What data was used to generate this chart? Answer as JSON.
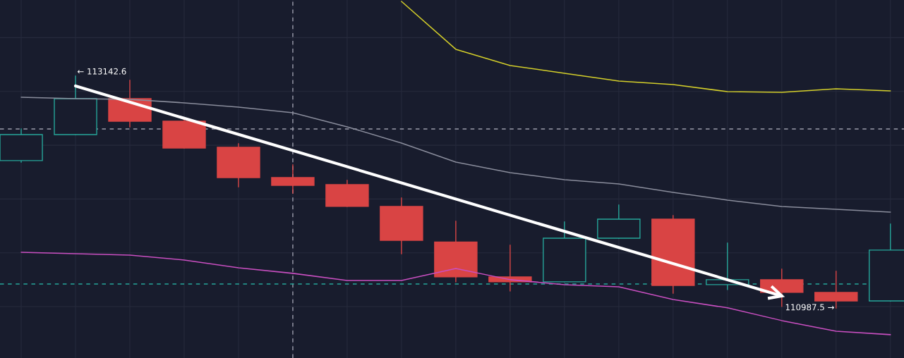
{
  "chart_data": {
    "type": "candlestick",
    "grid": true,
    "categories": [
      null,
      null,
      null,
      null,
      null,
      null,
      null,
      null,
      null,
      null,
      null,
      null,
      null,
      null,
      null,
      null,
      null
    ],
    "ylim": [
      110522,
      113850
    ],
    "ohlc": [
      [
        112357,
        112651,
        112343,
        112599
      ],
      [
        112599,
        113142.6,
        112599,
        112933
      ],
      [
        112933,
        113103,
        112671,
        112723
      ],
      [
        112723,
        112737,
        112474,
        112474
      ],
      [
        112481,
        112514,
        112114,
        112199
      ],
      [
        112199,
        112317,
        112055,
        112127
      ],
      [
        112134,
        112173,
        111931,
        111931
      ],
      [
        111931,
        112009,
        111492,
        111616
      ],
      [
        111600,
        111793,
        111230,
        111276
      ],
      [
        111276,
        111571,
        111145,
        111230
      ],
      [
        111230,
        111787,
        111230,
        111636
      ],
      [
        111636,
        111944,
        111636,
        111813
      ],
      [
        111813,
        111846,
        111125,
        111197
      ],
      [
        111204,
        111590,
        111158,
        111250
      ],
      [
        111250,
        111348,
        111001,
        111132
      ],
      [
        111132,
        111328,
        110987.5,
        111053
      ],
      [
        111053,
        111767,
        111053,
        111525
      ]
    ],
    "colors": [
      "#26a69a",
      "#26a69a",
      "#d94444",
      "#d94444",
      "#d94444",
      "#d94444",
      "#d94444",
      "#d94444",
      "#d94444",
      "#d94444",
      "#26a69a",
      "#26a69a",
      "#d94444",
      "#26a69a",
      "#d94444",
      "#d94444",
      "#26a69a"
    ],
    "series": [
      {
        "type": "line",
        "color": "#d4cf2a",
        "values": [
          null,
          null,
          null,
          null,
          null,
          null,
          null,
          113837,
          113392,
          113241,
          113169,
          113097,
          113064,
          112998,
          112992,
          113025,
          113005
        ]
      },
      {
        "type": "line",
        "color": "#8a8d9c",
        "values": [
          112946,
          112933,
          112926,
          112894,
          112854,
          112802,
          112671,
          112520,
          112343,
          112245,
          112180,
          112140,
          112062,
          111990,
          111931,
          111905,
          111878
        ]
      },
      {
        "type": "line",
        "color": "#c94fc1",
        "values": [
          111505,
          111492,
          111479,
          111433,
          111361,
          111309,
          111243,
          111243,
          111354,
          111250,
          111204,
          111184,
          111066,
          110988,
          110870,
          110771,
          110739
        ]
      },
      {
        "type": "line",
        "color": "#ffffff",
        "values": [
          null,
          113051,
          null,
          null,
          null,
          null,
          null,
          null,
          null,
          null,
          null,
          null,
          null,
          null,
          111099,
          null,
          null
        ]
      }
    ],
    "ref_lines": [
      {
        "axis": "y",
        "value": 112651,
        "color": "#9a9cab",
        "line_style": "dashed"
      },
      {
        "axis": "y",
        "value": 111210,
        "color": "#26a69a",
        "line_style": "dashed"
      }
    ],
    "annotations": [
      "← 113142.6",
      "110987.5 →"
    ]
  }
}
